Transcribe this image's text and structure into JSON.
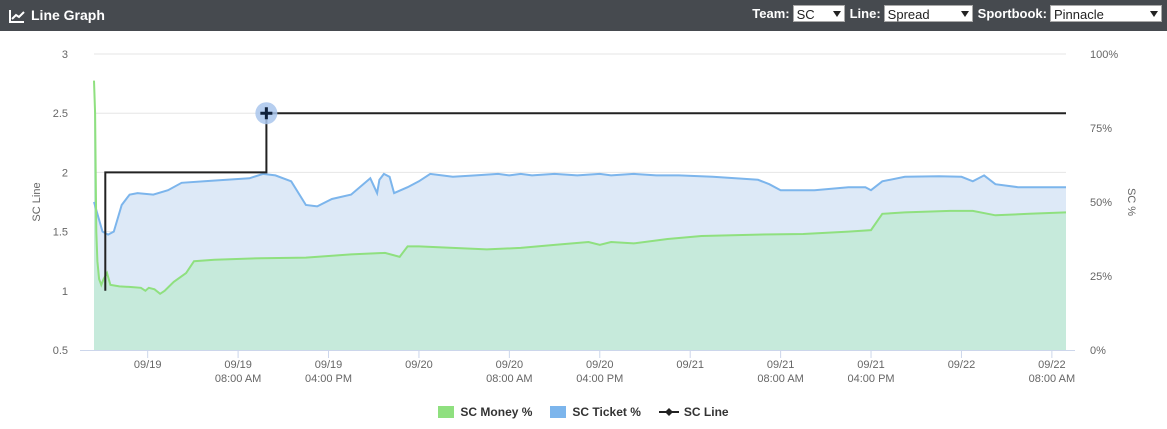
{
  "header": {
    "title": "Line Graph",
    "title_icon": "line-chart-icon",
    "team_label": "Team:",
    "team_value": "SC",
    "line_label": "Line:",
    "line_value": "Spread",
    "book_label": "Sportbook:",
    "book_value": "Pinnacle"
  },
  "colors": {
    "header_bg": "#464a4f",
    "money": "#8fe07f",
    "money_fill": "#c6eadb",
    "ticket": "#7cb5ec",
    "ticket_fill": "#dde9f7",
    "line": "#222222",
    "grid": "#e6e6e6"
  },
  "chart_data": {
    "type": "line",
    "xlabels": [
      "09/19",
      "09/19\n08:00 AM",
      "09/19\n04:00 PM",
      "09/20",
      "09/20\n08:00 AM",
      "09/20\n04:00 PM",
      "09/21",
      "09/21\n08:00 AM",
      "09/21\n04:00 PM",
      "09/22",
      "09/22\n08:00 AM"
    ],
    "x_hours": [
      0,
      8,
      16,
      24,
      32,
      40,
      48,
      56,
      64,
      72,
      80
    ],
    "x_range_hours": [
      -4.75,
      81.25
    ],
    "ylabel_left": "SC Line",
    "ylabel_right": "SC %",
    "left_ticks": [
      "0.5",
      "1",
      "1.5",
      "2",
      "2.5",
      "3"
    ],
    "left_range": [
      0.5,
      3
    ],
    "right_ticks": [
      "0%",
      "25%",
      "50%",
      "75%",
      "100%"
    ],
    "right_range": [
      0,
      100
    ],
    "grid": true,
    "legend_position": "bottom",
    "series": [
      {
        "name": "SC Money %",
        "axis": "right",
        "type": "area",
        "points": [
          [
            -4.75,
            91
          ],
          [
            -4.65,
            80
          ],
          [
            -4.55,
            40
          ],
          [
            -4.45,
            30
          ],
          [
            -4.3,
            24
          ],
          [
            -4.1,
            22
          ],
          [
            -3.9,
            24
          ],
          [
            -3.6,
            26
          ],
          [
            -3.3,
            22
          ],
          [
            -2.5,
            21.5
          ],
          [
            -1.5,
            21.3
          ],
          [
            -0.6,
            21
          ],
          [
            -0.2,
            20
          ],
          [
            0.1,
            21
          ],
          [
            0.6,
            20.5
          ],
          [
            1.1,
            19
          ],
          [
            1.5,
            20
          ],
          [
            2.3,
            23
          ],
          [
            3.4,
            26
          ],
          [
            4.1,
            30
          ],
          [
            5.9,
            30.5
          ],
          [
            10,
            31
          ],
          [
            14,
            31.2
          ],
          [
            18,
            32.3
          ],
          [
            21,
            32.8
          ],
          [
            22.3,
            31.5
          ],
          [
            23,
            35
          ],
          [
            24,
            35
          ],
          [
            27,
            34.5
          ],
          [
            30,
            34
          ],
          [
            33,
            34.5
          ],
          [
            36,
            35.5
          ],
          [
            39,
            36.5
          ],
          [
            40,
            35.5
          ],
          [
            41,
            36.5
          ],
          [
            43,
            36
          ],
          [
            46,
            37.5
          ],
          [
            49,
            38.5
          ],
          [
            54,
            39
          ],
          [
            58,
            39.2
          ],
          [
            62,
            40
          ],
          [
            64,
            40.5
          ],
          [
            65,
            46
          ],
          [
            67,
            46.5
          ],
          [
            71,
            47
          ],
          [
            73,
            47
          ],
          [
            75,
            45.5
          ],
          [
            78,
            46
          ],
          [
            81.25,
            46.5
          ]
        ]
      },
      {
        "name": "SC Ticket %",
        "axis": "right",
        "type": "area",
        "points": [
          [
            -4.75,
            50
          ],
          [
            -4,
            40
          ],
          [
            -3.5,
            39
          ],
          [
            -3,
            40
          ],
          [
            -2.3,
            49
          ],
          [
            -1.6,
            52.5
          ],
          [
            -0.9,
            53
          ],
          [
            0.5,
            52.5
          ],
          [
            1.8,
            54
          ],
          [
            3,
            56.5
          ],
          [
            5,
            57
          ],
          [
            7,
            57.5
          ],
          [
            9,
            58
          ],
          [
            10.2,
            59.5
          ],
          [
            11.3,
            59
          ],
          [
            12.7,
            57
          ],
          [
            14,
            49
          ],
          [
            15,
            48.5
          ],
          [
            16.3,
            51
          ],
          [
            18,
            52.5
          ],
          [
            19.7,
            58
          ],
          [
            20.3,
            53
          ],
          [
            20.5,
            57.5
          ],
          [
            20.9,
            59.5
          ],
          [
            21.4,
            58.5
          ],
          [
            21.8,
            53
          ],
          [
            23,
            55
          ],
          [
            24,
            57
          ],
          [
            25,
            59.5
          ],
          [
            27,
            58.5
          ],
          [
            29,
            59
          ],
          [
            31,
            59.5
          ],
          [
            32,
            59
          ],
          [
            33,
            59.5
          ],
          [
            34,
            59
          ],
          [
            36,
            59.5
          ],
          [
            38,
            59
          ],
          [
            40,
            59.5
          ],
          [
            41,
            59
          ],
          [
            43,
            59.5
          ],
          [
            45,
            59
          ],
          [
            47,
            59
          ],
          [
            50,
            58.5
          ],
          [
            54,
            57.5
          ],
          [
            55,
            56
          ],
          [
            56,
            54
          ],
          [
            59,
            54
          ],
          [
            62,
            55
          ],
          [
            63.5,
            55
          ],
          [
            64,
            54
          ],
          [
            65,
            57
          ],
          [
            67,
            58.5
          ],
          [
            70,
            58.7
          ],
          [
            72,
            58.5
          ],
          [
            73,
            57
          ],
          [
            74,
            59
          ],
          [
            75,
            56
          ],
          [
            77,
            55
          ],
          [
            78,
            55
          ],
          [
            81.25,
            55
          ]
        ]
      },
      {
        "name": "SC Line",
        "axis": "left",
        "type": "step",
        "points": [
          [
            -3.75,
            1
          ],
          [
            -3.75,
            2
          ],
          [
            10.5,
            2
          ],
          [
            10.5,
            2.5
          ],
          [
            81.25,
            2.5
          ]
        ],
        "marker_at": [
          10.5,
          2.5
        ]
      }
    ]
  }
}
